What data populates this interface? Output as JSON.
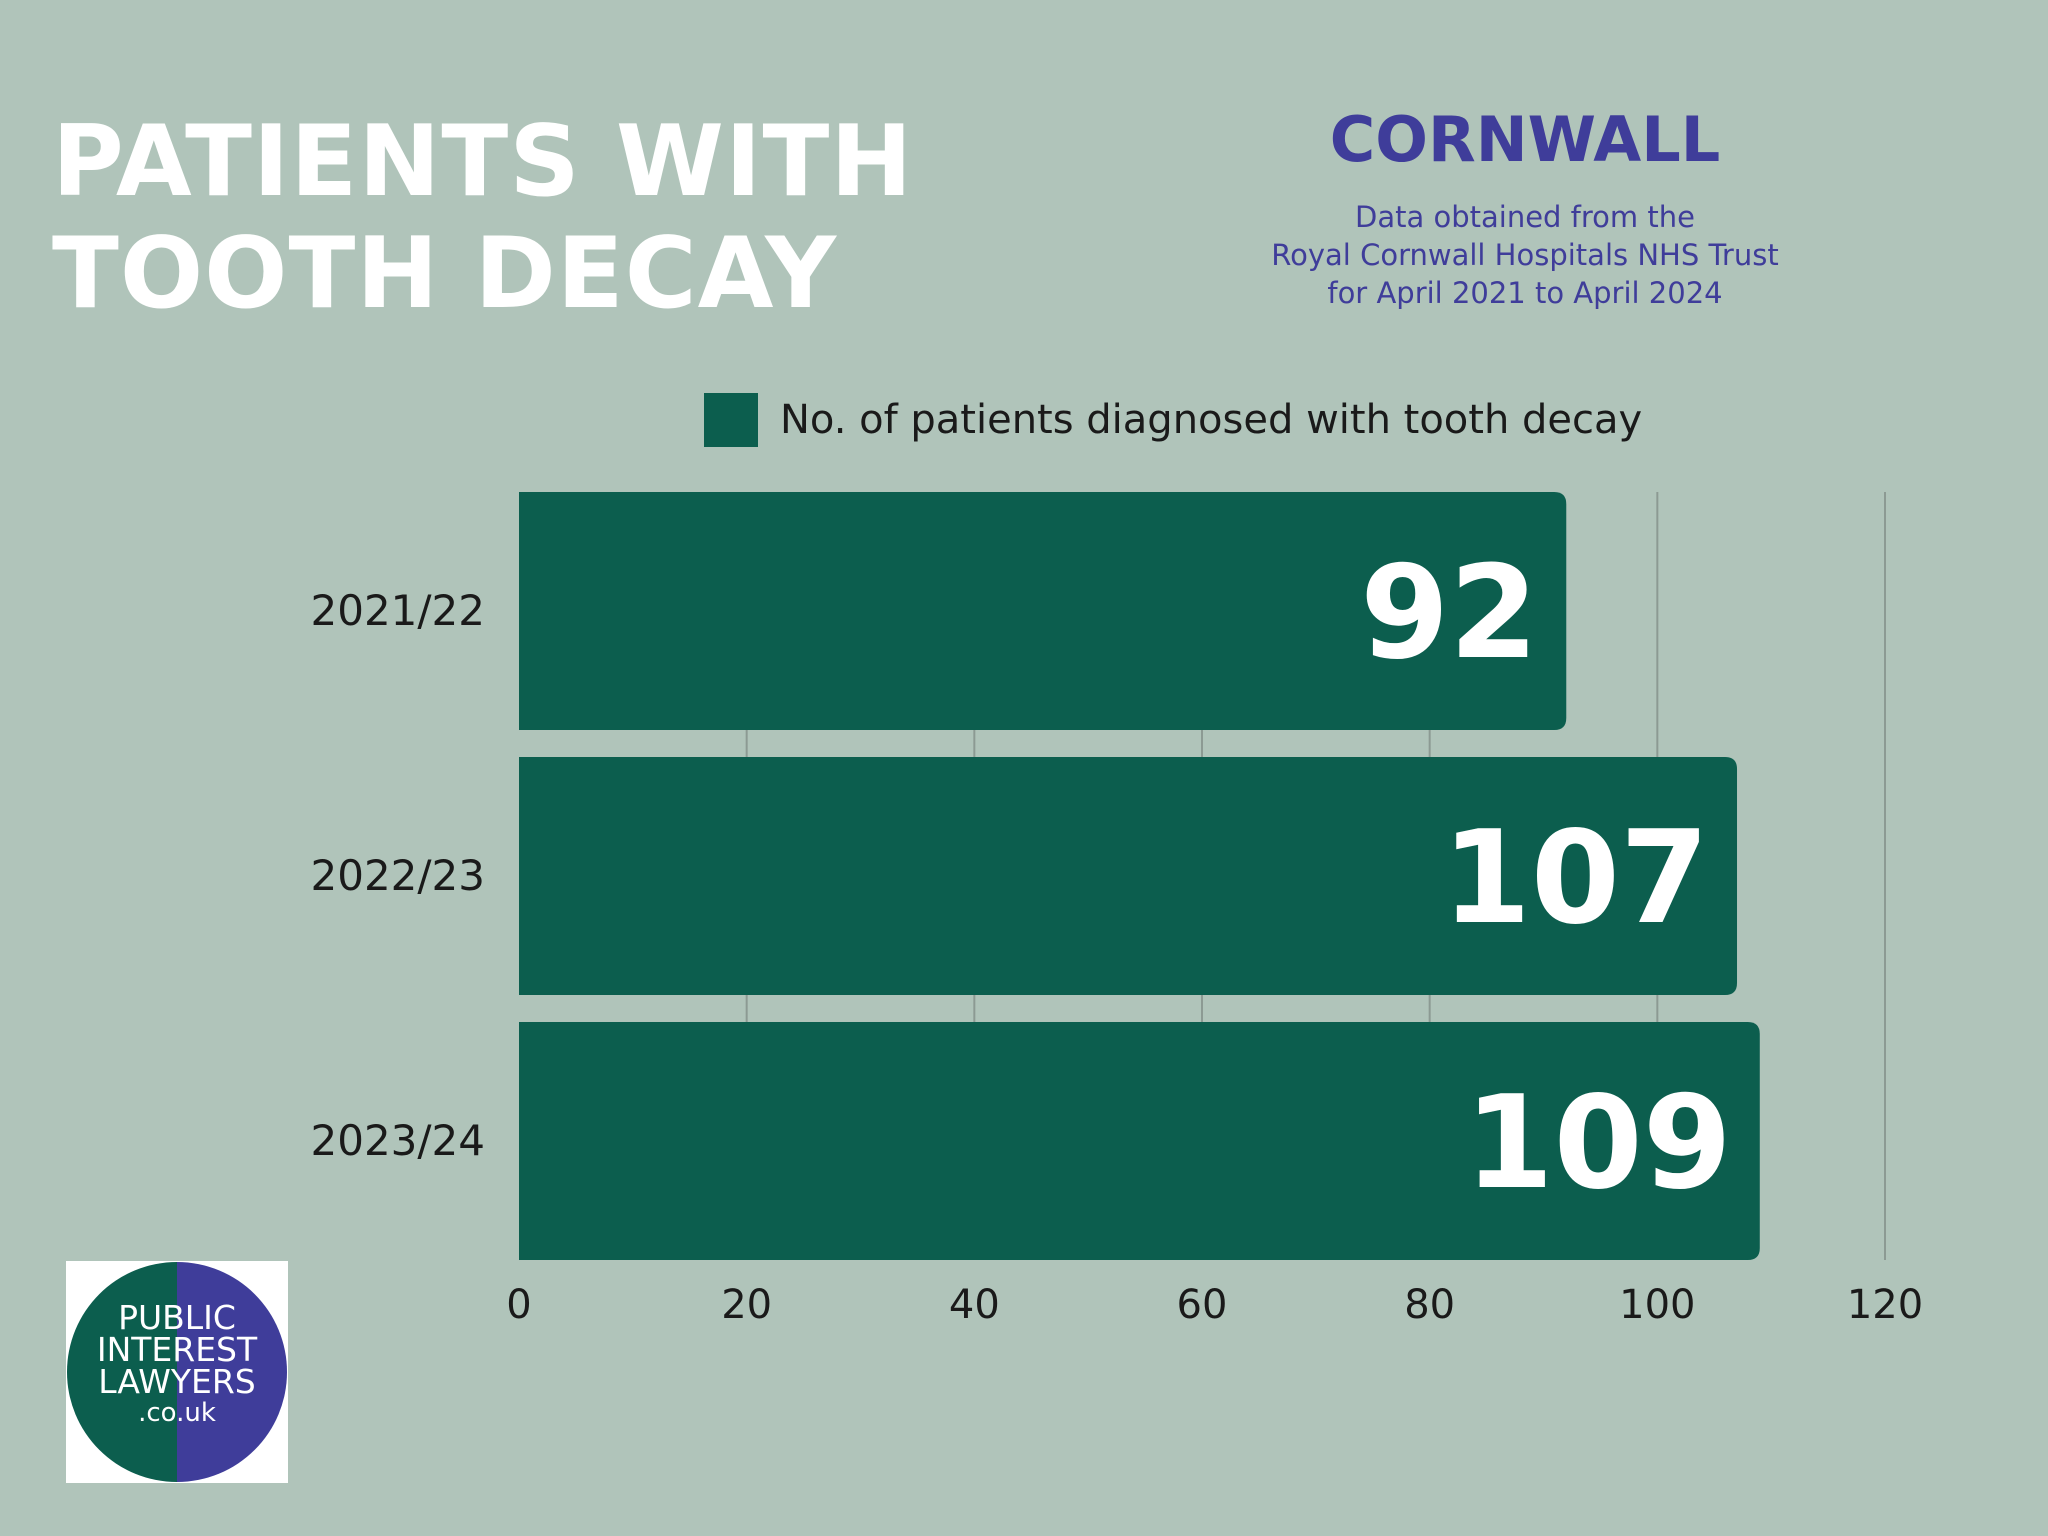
{
  "header": {
    "title_line1": "PATIENTS WITH",
    "title_line2": "TOOTH DECAY",
    "region": "CORNWALL",
    "source_line1": "Data obtained from the",
    "source_line2": "Royal Cornwall Hospitals NHS Trust",
    "source_line3": "for April 2021 to April 2024"
  },
  "logo": {
    "line1": "PUBLIC",
    "line2": "INTEREST",
    "line3": "LAWYERS",
    "line4": ".co.uk"
  },
  "colors": {
    "background": "#b0c4ba",
    "bar": "#0c5e4e",
    "accent": "#3f3d9a",
    "title": "#ffffff"
  },
  "chart_data": {
    "type": "bar",
    "orientation": "horizontal",
    "categories": [
      "2021/22",
      "2022/23",
      "2023/24"
    ],
    "series": [
      {
        "name": "No. of patients diagnosed with tooth decay",
        "values": [
          92,
          107,
          109
        ]
      }
    ],
    "data_labels": [
      "92",
      "107",
      "109"
    ],
    "xlim": [
      0,
      120
    ],
    "xticks": [
      0,
      20,
      40,
      60,
      80,
      100,
      120
    ],
    "legend_position": "top",
    "grid": true
  }
}
